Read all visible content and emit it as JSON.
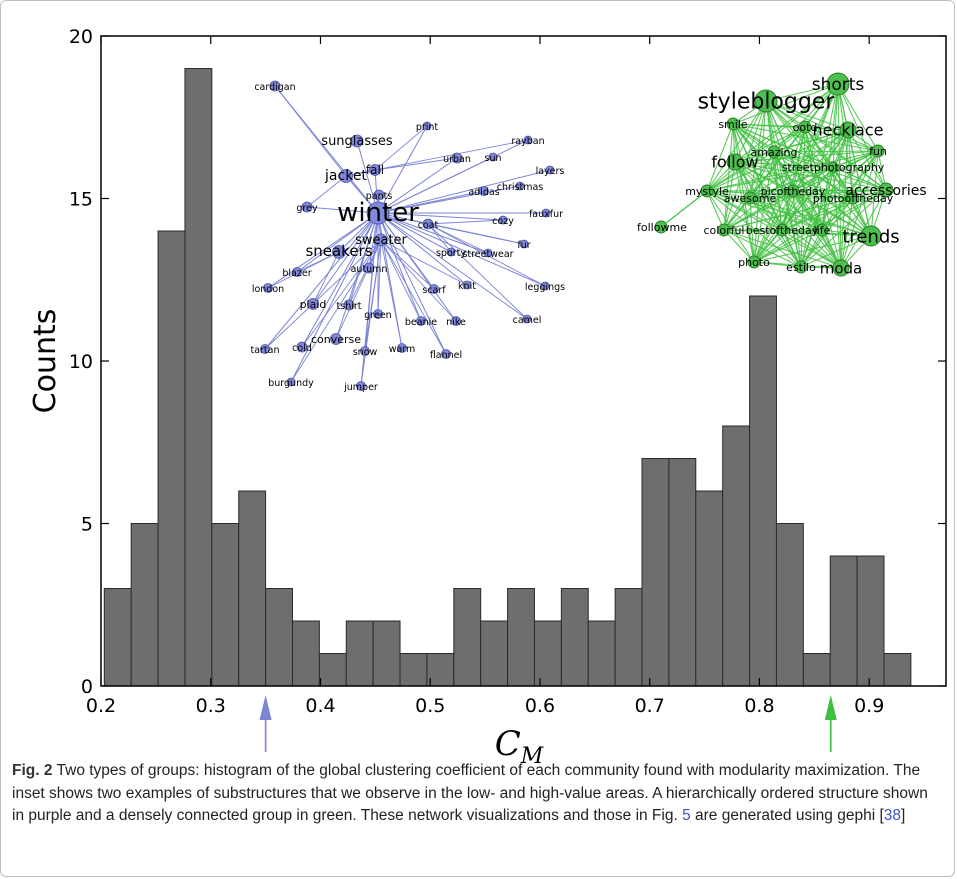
{
  "chart_data": {
    "type": "bar",
    "title": "",
    "xlabel": "C_M",
    "ylabel": "Counts",
    "xlim": [
      0.2,
      0.97
    ],
    "ylim": [
      0,
      20
    ],
    "grid": false,
    "x_ticks": [
      "0.2",
      "0.3",
      "0.4",
      "0.5",
      "0.6",
      "0.7",
      "0.8",
      "0.9"
    ],
    "y_ticks": [
      "0",
      "5",
      "10",
      "15",
      "20"
    ],
    "bin_width": 0.0245,
    "bins": [
      {
        "x0": 0.203,
        "count": 3
      },
      {
        "x0": 0.2275,
        "count": 5
      },
      {
        "x0": 0.252,
        "count": 14
      },
      {
        "x0": 0.2765,
        "count": 19
      },
      {
        "x0": 0.301,
        "count": 5
      },
      {
        "x0": 0.3255,
        "count": 6
      },
      {
        "x0": 0.35,
        "count": 3
      },
      {
        "x0": 0.3745,
        "count": 2
      },
      {
        "x0": 0.399,
        "count": 1
      },
      {
        "x0": 0.4235,
        "count": 2
      },
      {
        "x0": 0.448,
        "count": 2
      },
      {
        "x0": 0.4725,
        "count": 1
      },
      {
        "x0": 0.497,
        "count": 1
      },
      {
        "x0": 0.5215,
        "count": 3
      },
      {
        "x0": 0.546,
        "count": 2
      },
      {
        "x0": 0.5705,
        "count": 3
      },
      {
        "x0": 0.595,
        "count": 2
      },
      {
        "x0": 0.6195,
        "count": 3
      },
      {
        "x0": 0.644,
        "count": 2
      },
      {
        "x0": 0.6685,
        "count": 3
      },
      {
        "x0": 0.693,
        "count": 7
      },
      {
        "x0": 0.7175,
        "count": 7
      },
      {
        "x0": 0.742,
        "count": 6
      },
      {
        "x0": 0.7665,
        "count": 8
      },
      {
        "x0": 0.791,
        "count": 12
      },
      {
        "x0": 0.8155,
        "count": 5
      },
      {
        "x0": 0.84,
        "count": 1
      },
      {
        "x0": 0.8645,
        "count": 4
      },
      {
        "x0": 0.889,
        "count": 4
      },
      {
        "x0": 0.9135,
        "count": 1
      }
    ],
    "bar_color": "#6e6e6e",
    "annotations": [
      {
        "kind": "arrow",
        "x": 0.35,
        "color": "#7a86d2"
      },
      {
        "kind": "arrow",
        "x": 0.865,
        "color": "#3fbf3f"
      }
    ]
  },
  "inset_networks": {
    "purple": {
      "color": "#7b84d6",
      "node_fill": "#8088db",
      "hub": "winter",
      "nodes": [
        "cardigan",
        "print",
        "rayban",
        "sunglasses",
        "urban",
        "sun",
        "layers",
        "fall",
        "jacket",
        "christmas",
        "adidas",
        "pants",
        "grey",
        "winter",
        "coat",
        "cozy",
        "fauxfur",
        "sporty",
        "streetwear",
        "sneakers",
        "sweater",
        "fur",
        "blazer",
        "autumn",
        "london",
        "knit",
        "leggings",
        "scarf",
        "plaid",
        "tshirt",
        "green",
        "beanie",
        "nike",
        "camel",
        "converse",
        "tartan",
        "cold",
        "snow",
        "warm",
        "flannel",
        "burgundy",
        "jumper"
      ]
    },
    "green": {
      "color": "#41c041",
      "node_fill": "#4cc04c",
      "nodes": [
        "shorts",
        "styleblogger",
        "smile",
        "ootd",
        "necklace",
        "fun",
        "amazing",
        "follow",
        "streetphotography",
        "mystyle",
        "picoftheday",
        "accessories",
        "awesome",
        "photooftheday",
        "followme",
        "colorful",
        "bestoftheday",
        "life",
        "trends",
        "photo",
        "estilo",
        "moda"
      ]
    }
  },
  "caption": {
    "fig_label": "Fig. 2",
    "text_before_ref1": "  Two types of groups: histogram of the global clustering coefficient of each community found with modularity maximization. The inset shows two examples of substructures that we observe in the low- and high-value areas. A hierarchically ordered structure shown in purple and a densely connected group in green. These network visualizations and those in Fig. ",
    "ref1": "5",
    "text_between": " are generated using gephi [",
    "ref2": "38",
    "text_after": "]"
  }
}
